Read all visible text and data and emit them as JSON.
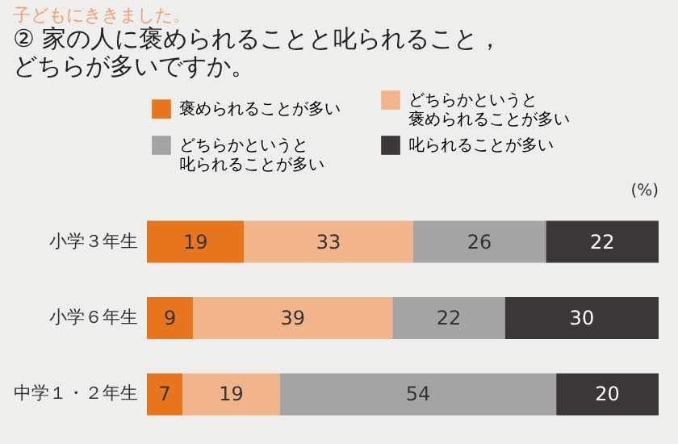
{
  "chart_data": {
    "type": "bar",
    "orientation": "horizontal",
    "stacked": true,
    "subtitle": "子どもにききました。",
    "title": "家の人に褒められることと叱られること，どちらが多いですか。",
    "annotations": [
      "②",
      "(%)"
    ],
    "categories": [
      "小学３年生",
      "小学６年生",
      "中学１・２年生"
    ],
    "series": [
      {
        "name": "褒められることが多い",
        "color": "#e8761e",
        "values": [
          19,
          9,
          7
        ]
      },
      {
        "name": "どちらかというと褒められることが多い",
        "color": "#f2b48a",
        "values": [
          33,
          39,
          19
        ]
      },
      {
        "name": "どちらかというと叱られることが多い",
        "color": "#a4a4a4",
        "values": [
          26,
          22,
          54
        ]
      },
      {
        "name": "叱られることが多い",
        "color": "#3b3738",
        "values": [
          22,
          30,
          20
        ]
      }
    ],
    "xlim": [
      0,
      100
    ],
    "data_labels": true,
    "legend": "top",
    "tick_labels": "y"
  }
}
